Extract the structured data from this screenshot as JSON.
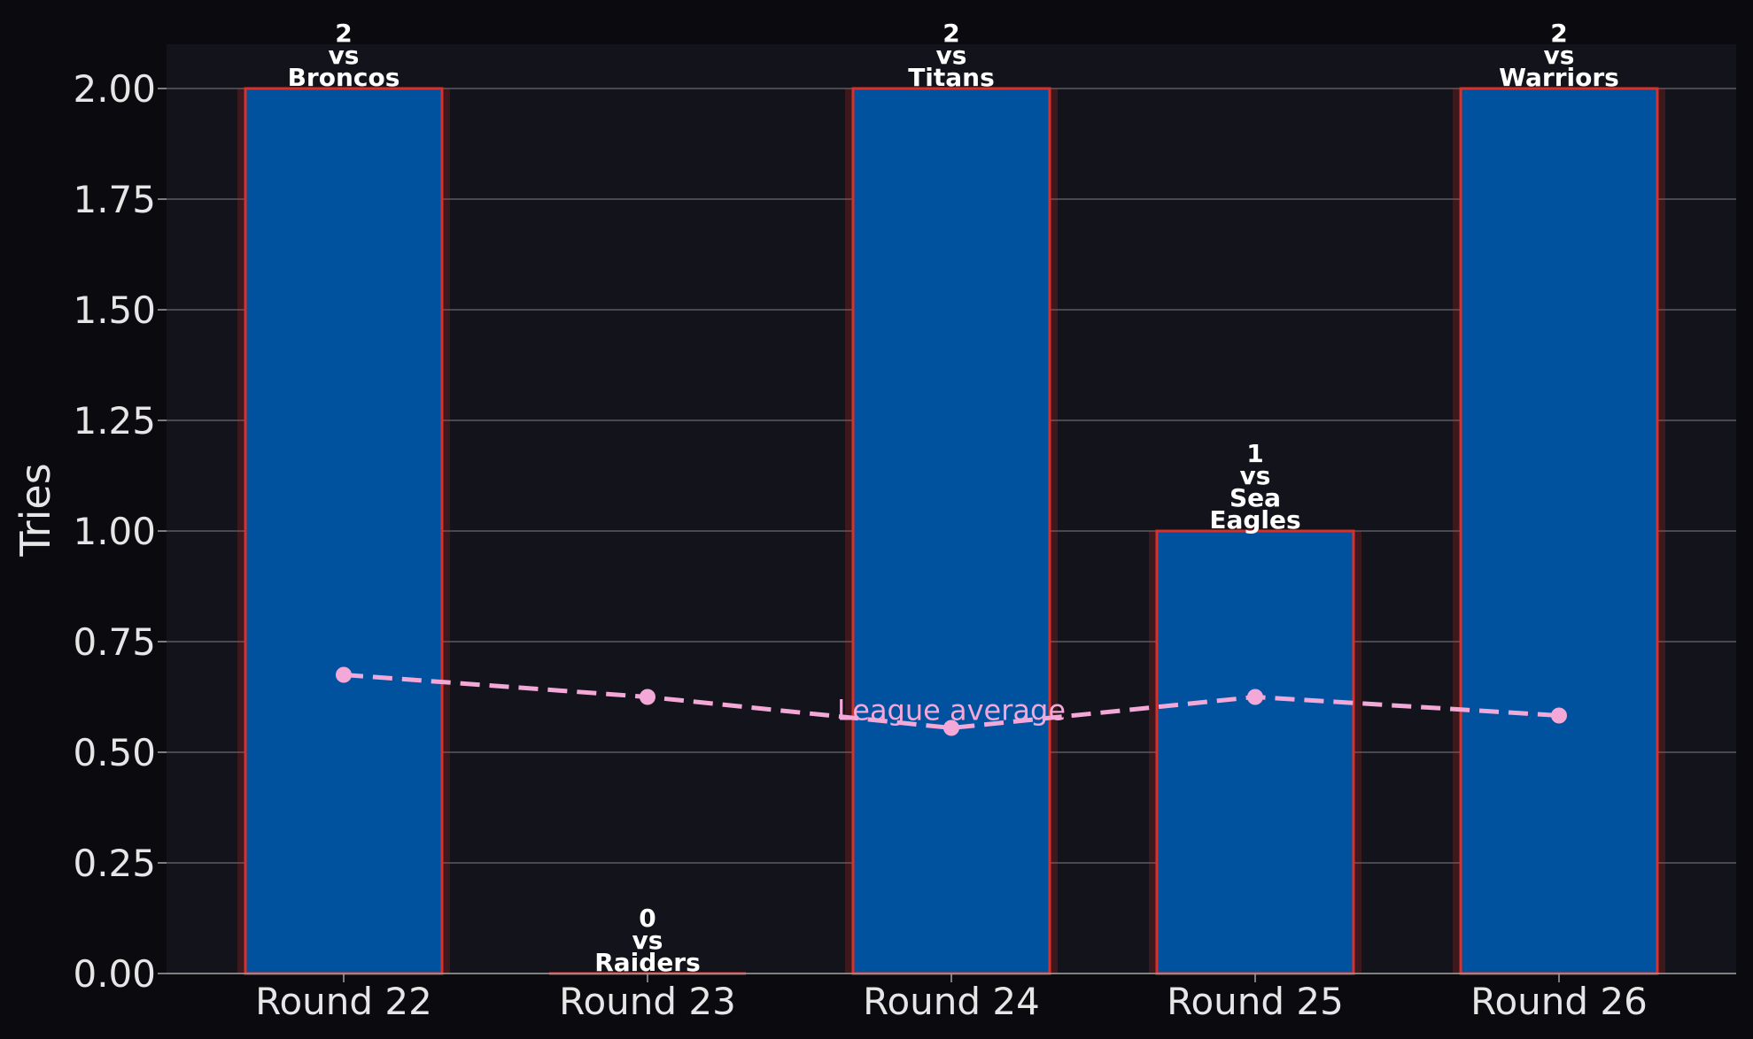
{
  "chart_data": {
    "type": "bar",
    "categories": [
      "Round 22",
      "Round 23",
      "Round 24",
      "Round 25",
      "Round 26"
    ],
    "values": [
      2,
      0,
      2,
      1,
      2
    ],
    "opponents": [
      "Broncos",
      "Raiders",
      "Titans",
      "Sea\nEagles",
      "Warriors"
    ],
    "bar_labels": [
      "2\nvs\nBroncos",
      "0\nvs\nRaiders",
      "2\nvs\nTitans",
      "1\nvs\nSea\nEagles",
      "2\nvs\nWarriors"
    ],
    "line_series": {
      "name": "League average",
      "values": [
        0.675,
        0.625,
        0.555,
        0.625,
        0.583
      ]
    },
    "xlabel": "",
    "ylabel": "Tries",
    "ylim": [
      0,
      2.1
    ],
    "yticks": [
      "0.00",
      "0.25",
      "0.50",
      "0.75",
      "1.00",
      "1.25",
      "1.50",
      "1.75",
      "2.00"
    ],
    "grid": "horizontal",
    "colors": {
      "background": "#0b0b0f",
      "plot_background": "#13131b",
      "bar_fill": "#00529f",
      "bar_edge": "#d8302a",
      "line": "#f4a8d8",
      "grid": "#5a5a5f",
      "text": "#e6e6e6"
    }
  }
}
